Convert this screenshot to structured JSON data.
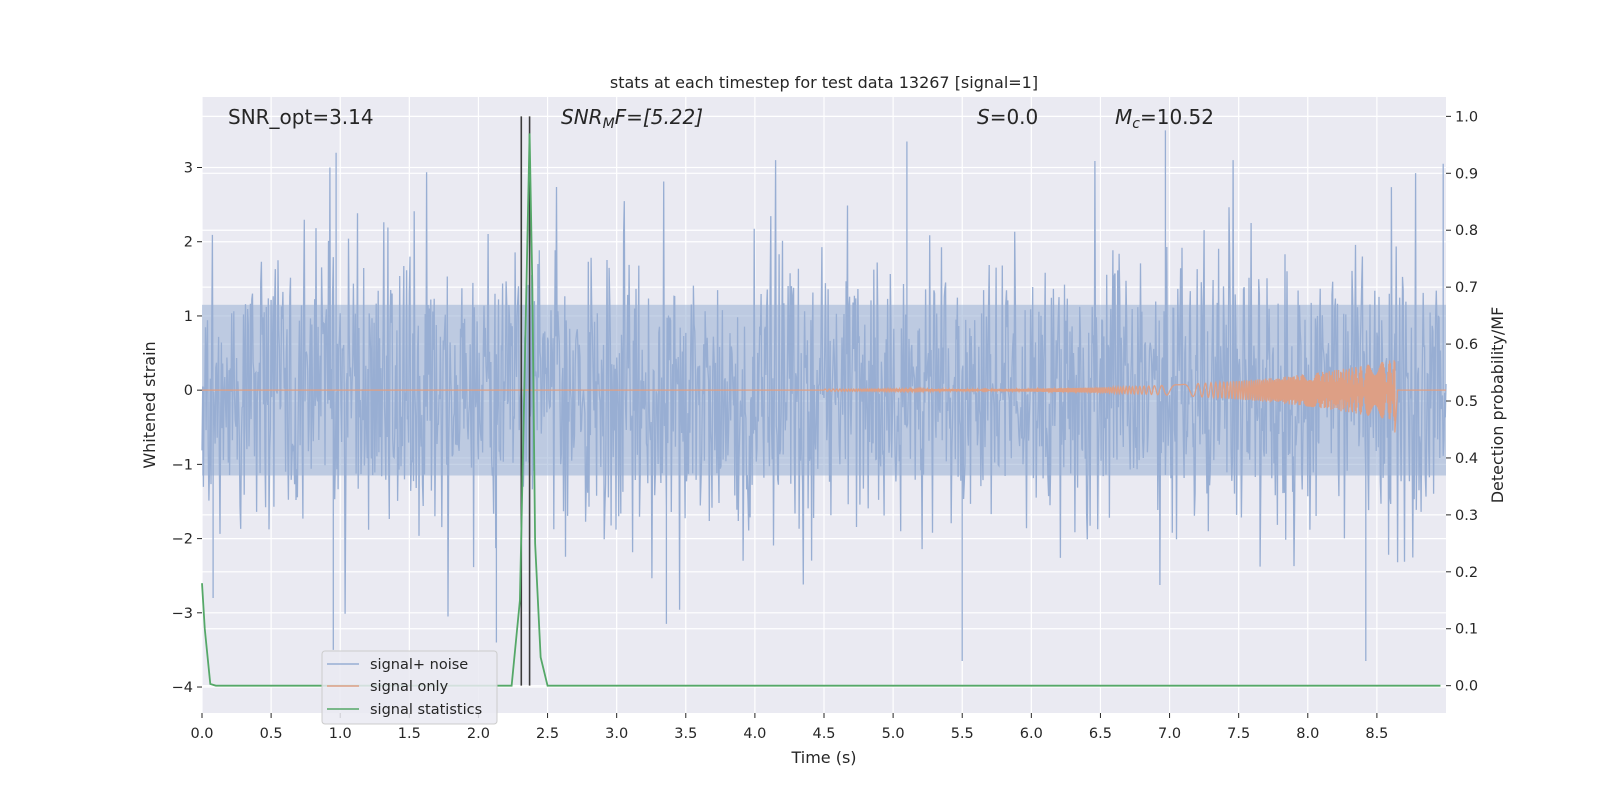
{
  "chart_data": {
    "type": "line",
    "title": "stats at each timestep for test data 13267 [signal=1]",
    "xlabel": "Time (s)",
    "ylabel": "Whitened strain",
    "y2label": "Detection probability/MF",
    "xlim": [
      0.0,
      9.0
    ],
    "ylim": [
      -4.35,
      3.95
    ],
    "y2lim": [
      -0.048,
      1.034
    ],
    "x_ticks": [
      "0.0",
      "0.5",
      "1.0",
      "1.5",
      "2.0",
      "2.5",
      "3.0",
      "3.5",
      "4.0",
      "4.5",
      "5.0",
      "5.5",
      "6.0",
      "6.5",
      "7.0",
      "7.5",
      "8.0",
      "8.5"
    ],
    "y_ticks": [
      "−4",
      "−3",
      "−2",
      "−1",
      "0",
      "1",
      "2",
      "3"
    ],
    "y2_ticks": [
      "0.0",
      "0.1",
      "0.2",
      "0.3",
      "0.4",
      "0.5",
      "0.6",
      "0.7",
      "0.8",
      "0.9",
      "1.0"
    ],
    "grid": true,
    "legend_placement": "lower-left",
    "annotations": {
      "snr_opt": "SNR_opt=3.14",
      "snr_mf_pre": "SNR",
      "snr_mf_sub": "M",
      "snr_mf_post": "F=[5.22]",
      "s_var": "S",
      "s_val": "=0.0",
      "mc_var": "M",
      "mc_sub": "c",
      "mc_val": "=10.52"
    },
    "vertical_lines_x": [
      2.31,
      2.37
    ],
    "series": [
      {
        "name": "signal+ noise",
        "color": "#98aed3",
        "noise_envelope_typical": 2.0,
        "extreme_spikes": [
          [
            0.08,
            -2.8
          ],
          [
            0.95,
            -3.5
          ],
          [
            0.97,
            3.2
          ],
          [
            2.13,
            -3.4
          ],
          [
            3.36,
            -3.15
          ],
          [
            5.1,
            3.35
          ],
          [
            5.5,
            -3.65
          ],
          [
            6.97,
            3.5
          ],
          [
            8.42,
            -3.65
          ],
          [
            8.98,
            3.05
          ]
        ]
      },
      {
        "name": "signal only",
        "color": "#dd9f85",
        "chirp_start": 4.5,
        "chirp_end": 8.63,
        "peak_amplitude": 0.4,
        "min_value": -0.57
      },
      {
        "name": "signal statistics",
        "color": "#55a868",
        "axis": "right",
        "x": [
          0.0,
          0.02,
          0.06,
          0.1,
          0.2,
          0.5,
          1.0,
          1.5,
          2.0,
          2.24,
          2.3,
          2.33,
          2.37,
          2.39,
          2.41,
          2.45,
          2.5,
          3.0,
          4.0,
          5.0,
          6.0,
          7.0,
          8.0,
          8.96
        ],
        "y": [
          0.18,
          0.1,
          0.003,
          0.0,
          0.0,
          0.0,
          0.0,
          0.0,
          0.0,
          0.0,
          0.15,
          0.5,
          0.97,
          0.7,
          0.25,
          0.05,
          0.0,
          0.0,
          0.0,
          0.0,
          0.0,
          0.0,
          0.0,
          0.0
        ]
      }
    ]
  },
  "colors": {
    "plot_bg": "#eaeaf2",
    "grid": "#ffffff",
    "vline": "#3c3c3c"
  }
}
